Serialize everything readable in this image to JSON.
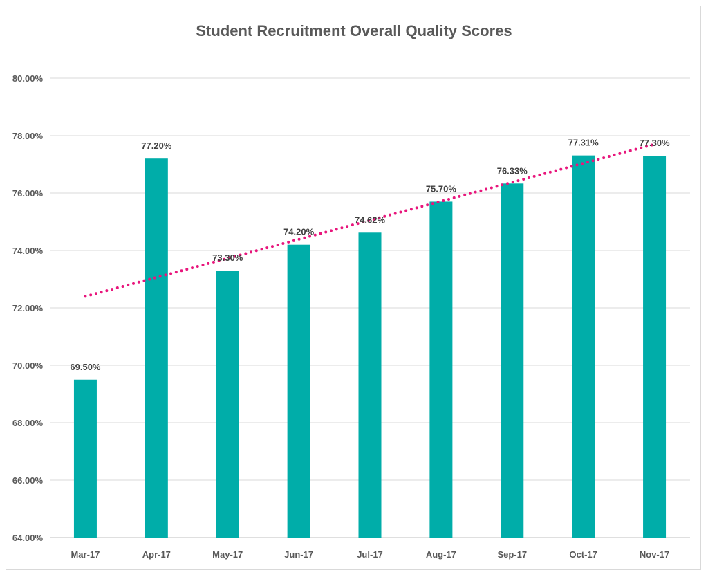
{
  "chart_data": {
    "type": "bar",
    "title": "Student Recruitment Overall Quality Scores",
    "xlabel": "",
    "ylabel": "",
    "categories": [
      "Mar-17",
      "Apr-17",
      "May-17",
      "Jun-17",
      "Jul-17",
      "Aug-17",
      "Sep-17",
      "Oct-17",
      "Nov-17"
    ],
    "values": [
      69.5,
      77.2,
      73.3,
      74.2,
      74.62,
      75.7,
      76.33,
      77.31,
      77.3
    ],
    "data_labels": [
      "69.50%",
      "77.20%",
      "73.30%",
      "74.20%",
      "74.62%",
      "75.70%",
      "76.33%",
      "77.31%",
      "77.30%"
    ],
    "ylim": [
      64,
      80
    ],
    "yticks": [
      64,
      66,
      68,
      70,
      72,
      74,
      76,
      78,
      80
    ],
    "ytick_labels": [
      "64.00%",
      "66.00%",
      "68.00%",
      "70.00%",
      "72.00%",
      "74.00%",
      "76.00%",
      "78.00%",
      "80.00%"
    ],
    "grid": true,
    "legend": "none",
    "trendline": {
      "type": "linear",
      "style": "dotted",
      "start": 72.4,
      "end": 77.7
    },
    "colors": {
      "bar": "#00ADA9",
      "trend": "#E8167C",
      "grid": "#d9d9d9",
      "axis": "#bfbfbf"
    }
  }
}
